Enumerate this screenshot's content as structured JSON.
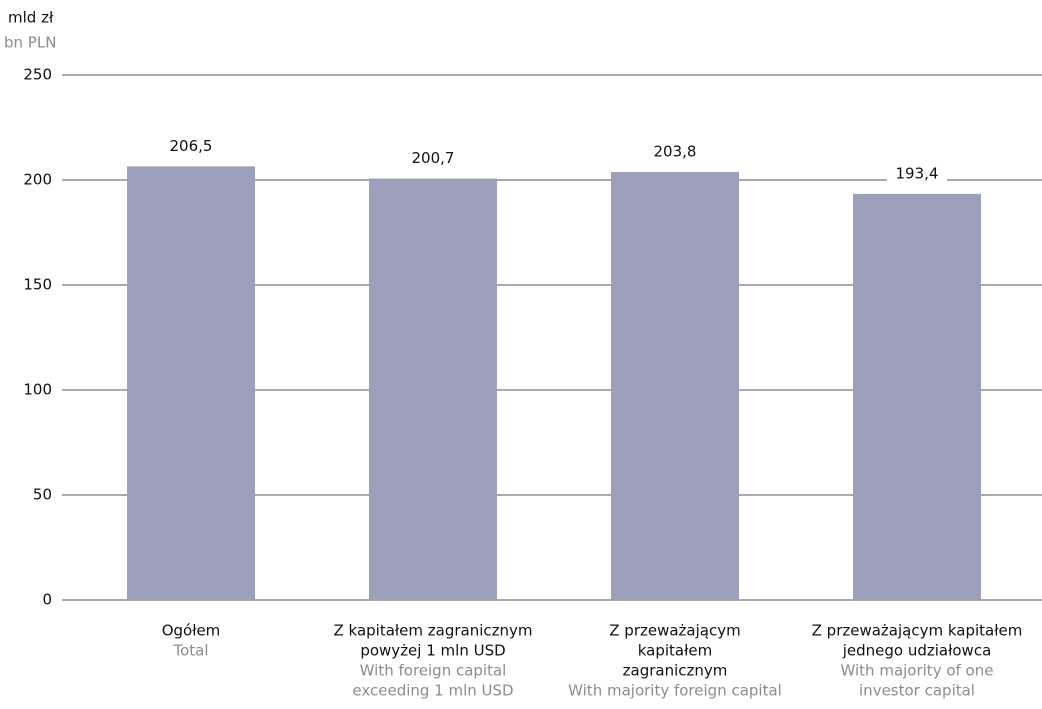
{
  "chart_data": {
    "type": "bar",
    "y_axis_label": "mld zł",
    "y_axis_label_en": "bn PLN",
    "categories": [
      [
        "Ogółem"
      ],
      [
        "Z kapitałem zagranicznym",
        "powyżej 1 mln USD"
      ],
      [
        "Z przeważającym",
        "kapitałem",
        "zagranicznym"
      ],
      [
        "Z przeważającym kapitałem",
        "jednego udziałowca"
      ]
    ],
    "category_translations": [
      [
        "Total"
      ],
      [
        "With foreign capital",
        "exceeding 1 mln USD"
      ],
      [
        "With majority foreign capital"
      ],
      [
        "With majority of one",
        "investor capital"
      ]
    ],
    "values": [
      206.5,
      200.7,
      203.8,
      193.4
    ],
    "value_labels": [
      "206,5",
      "200,7",
      "203,8",
      "193,4"
    ],
    "color": "#9da0bb",
    "ylim": [
      0,
      250
    ],
    "yticks": [
      0,
      50,
      100,
      150,
      200,
      250
    ],
    "grid": true
  }
}
